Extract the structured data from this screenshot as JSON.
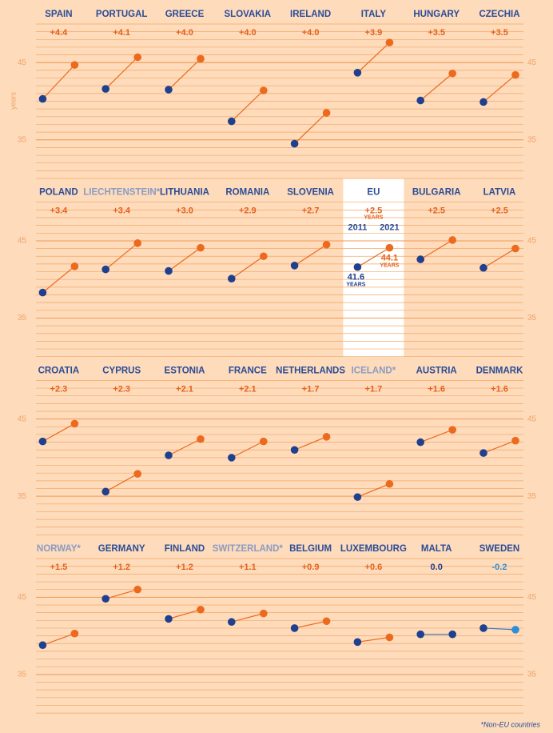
{
  "chart_data": {
    "type": "slope",
    "y_axis_label": "years",
    "ylim": [
      30,
      50
    ],
    "yticks": [
      35,
      45
    ],
    "grid_step": 1,
    "footnote": "*Non-EU countries",
    "eu_labels": {
      "year_start": "2011",
      "year_end": "2021",
      "unit": "YEARS"
    },
    "start_color": "#1f3f8f",
    "end_color": "#ec6a1e",
    "decline_color": "#2e8fd6",
    "panels": [
      {
        "name": "SPAIN",
        "change": "+4.4",
        "values": [
          40.3,
          44.7
        ]
      },
      {
        "name": "PORTUGAL",
        "change": "+4.1",
        "values": [
          41.6,
          45.7
        ]
      },
      {
        "name": "GREECE",
        "change": "+4.0",
        "values": [
          41.5,
          45.5
        ]
      },
      {
        "name": "SLOVAKIA",
        "change": "+4.0",
        "values": [
          37.4,
          41.4
        ]
      },
      {
        "name": "IRELAND",
        "change": "+4.0",
        "values": [
          34.5,
          38.5
        ]
      },
      {
        "name": "ITALY",
        "change": "+3.9",
        "values": [
          43.7,
          47.6
        ]
      },
      {
        "name": "HUNGARY",
        "change": "+3.5",
        "values": [
          40.1,
          43.6
        ]
      },
      {
        "name": "CZECHIA",
        "change": "+3.5",
        "values": [
          39.9,
          43.4
        ]
      },
      {
        "name": "POLAND",
        "change": "+3.4",
        "values": [
          38.3,
          41.7
        ]
      },
      {
        "name": "LIECHTENSTEIN*",
        "change": "+3.4",
        "values": [
          41.3,
          44.7
        ],
        "non_eu": true
      },
      {
        "name": "LITHUANIA",
        "change": "+3.0",
        "values": [
          41.1,
          44.1
        ]
      },
      {
        "name": "ROMANIA",
        "change": "+2.9",
        "values": [
          40.1,
          43.0
        ]
      },
      {
        "name": "SLOVENIA",
        "change": "+2.7",
        "values": [
          41.8,
          44.5
        ]
      },
      {
        "name": "EU",
        "change": "+2.5",
        "values": [
          41.6,
          44.1
        ],
        "highlight": true
      },
      {
        "name": "BULGARIA",
        "change": "+2.5",
        "values": [
          42.6,
          45.1
        ]
      },
      {
        "name": "LATVIA",
        "change": "+2.5",
        "values": [
          41.5,
          44.0
        ]
      },
      {
        "name": "CROATIA",
        "change": "+2.3",
        "values": [
          42.1,
          44.4
        ]
      },
      {
        "name": "CYPRUS",
        "change": "+2.3",
        "values": [
          35.6,
          37.9
        ]
      },
      {
        "name": "ESTONIA",
        "change": "+2.1",
        "values": [
          40.3,
          42.4
        ]
      },
      {
        "name": "FRANCE",
        "change": "+2.1",
        "values": [
          40.0,
          42.1
        ]
      },
      {
        "name": "NETHERLANDS",
        "change": "+1.7",
        "values": [
          41.0,
          42.7
        ]
      },
      {
        "name": "ICELAND*",
        "change": "+1.7",
        "values": [
          34.9,
          36.6
        ],
        "non_eu": true
      },
      {
        "name": "AUSTRIA",
        "change": "+1.6",
        "values": [
          42.0,
          43.6
        ]
      },
      {
        "name": "DENMARK",
        "change": "+1.6",
        "values": [
          40.6,
          42.2
        ]
      },
      {
        "name": "NORWAY*",
        "change": "+1.5",
        "values": [
          38.8,
          40.3
        ],
        "non_eu": true
      },
      {
        "name": "GERMANY",
        "change": "+1.2",
        "values": [
          44.8,
          46.0
        ]
      },
      {
        "name": "FINLAND",
        "change": "+1.2",
        "values": [
          42.2,
          43.4
        ]
      },
      {
        "name": "SWITZERLAND*",
        "change": "+1.1",
        "values": [
          41.8,
          42.9
        ],
        "non_eu": true
      },
      {
        "name": "BELGIUM",
        "change": "+0.9",
        "values": [
          41.0,
          41.9
        ]
      },
      {
        "name": "LUXEMBOURG",
        "change": "+0.6",
        "values": [
          39.2,
          39.8
        ]
      },
      {
        "name": "MALTA",
        "change": "0.0",
        "values": [
          40.2,
          40.2
        ]
      },
      {
        "name": "SWEDEN",
        "change": "-0.2",
        "values": [
          41.0,
          40.8
        ]
      }
    ]
  }
}
